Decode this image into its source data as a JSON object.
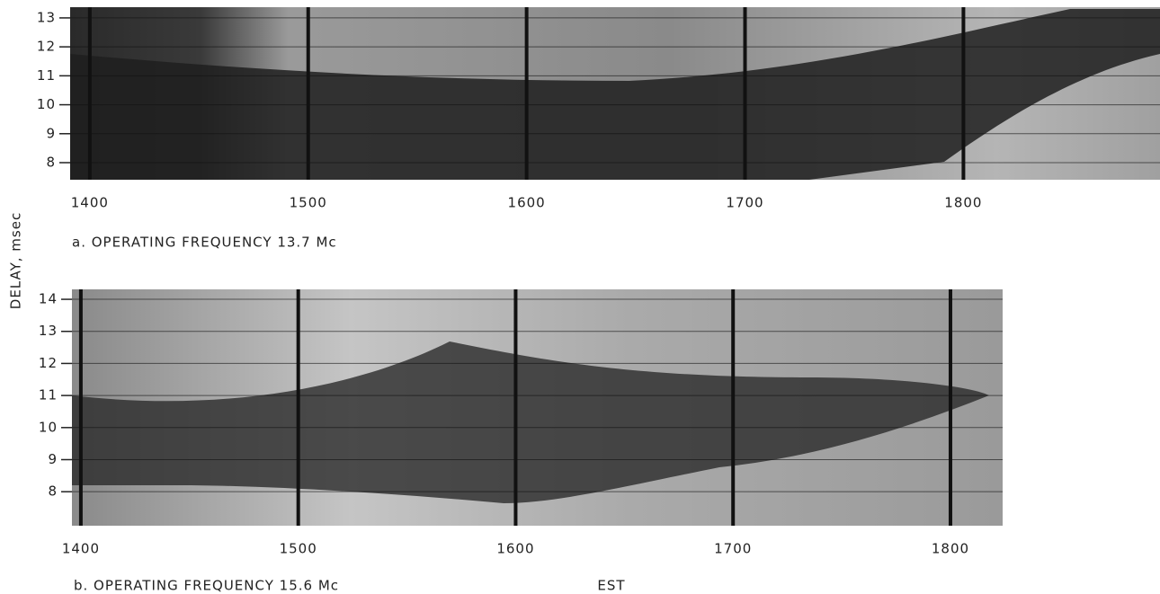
{
  "chart_data": [
    {
      "type": "record",
      "caption": "a. OPERATING FREQUENCY 13.7 Mc",
      "ylabel": "DELAY, msec",
      "xlim": [
        1391,
        1890
      ],
      "xticks": [
        1400,
        1500,
        1600,
        1700,
        1800
      ],
      "ylim": [
        7.41,
        13.37
      ],
      "yticks": [
        8,
        9,
        10,
        11,
        12,
        13
      ],
      "grid": true
    },
    {
      "type": "record",
      "caption": "b. OPERATING FREQUENCY 15.6 Mc",
      "xlabel": "EST",
      "xlim": [
        1395.9,
        1824
      ],
      "xticks": [
        1400,
        1500,
        1600,
        1700,
        1800
      ],
      "ylim": [
        6.94,
        14.31
      ],
      "yticks": [
        8,
        9,
        10,
        11,
        12,
        13,
        14
      ],
      "grid": true
    }
  ]
}
